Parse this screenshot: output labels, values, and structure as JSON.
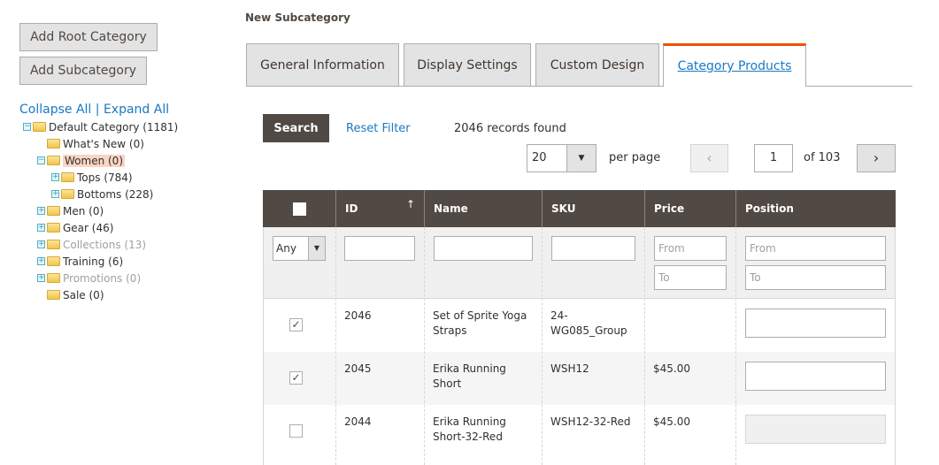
{
  "buttons": {
    "add_root": "Add Root Category",
    "add_sub": "Add Subcategory"
  },
  "tree": {
    "collapse": "Collapse All",
    "sep": "|",
    "expand": "Expand All",
    "nodes": [
      {
        "label": "Default Category (1181)",
        "level": 0,
        "toggle": "minus"
      },
      {
        "label": "What's New (0)",
        "level": 1,
        "toggle": "none"
      },
      {
        "label": "Women (0)",
        "level": 1,
        "toggle": "minus",
        "selected": true
      },
      {
        "label": "Tops (784)",
        "level": 2,
        "toggle": "plus"
      },
      {
        "label": "Bottoms (228)",
        "level": 2,
        "toggle": "plus"
      },
      {
        "label": "Men (0)",
        "level": 1,
        "toggle": "plus"
      },
      {
        "label": "Gear (46)",
        "level": 1,
        "toggle": "plus"
      },
      {
        "label": "Collections (13)",
        "level": 1,
        "toggle": "plus",
        "disabled": true
      },
      {
        "label": "Training (6)",
        "level": 1,
        "toggle": "plus"
      },
      {
        "label": "Promotions (0)",
        "level": 1,
        "toggle": "plus",
        "disabled": true
      },
      {
        "label": "Sale (0)",
        "level": 1,
        "toggle": "none"
      }
    ]
  },
  "page_title": "New Subcategory",
  "tabs": [
    "General Information",
    "Display Settings",
    "Custom Design",
    "Category Products"
  ],
  "grid": {
    "search": "Search",
    "reset": "Reset Filter",
    "records": "2046 records found",
    "per_page_value": "20",
    "per_page_label": "per page",
    "page": "1",
    "of_pages": "of 103",
    "columns": [
      "ID",
      "Name",
      "SKU",
      "Price",
      "Position"
    ],
    "filter": {
      "any": "Any",
      "from": "From",
      "to": "To"
    },
    "rows": [
      {
        "checked": true,
        "id": "2046",
        "name": "Set of Sprite Yoga Straps",
        "sku": "24-WG085_Group",
        "price": "",
        "position_enabled": true
      },
      {
        "checked": true,
        "id": "2045",
        "name": "Erika Running Short",
        "sku": "WSH12",
        "price": "$45.00",
        "position_enabled": true
      },
      {
        "checked": false,
        "id": "2044",
        "name": "Erika Running Short-32-Red",
        "sku": "WSH12-32-Red",
        "price": "$45.00",
        "position_enabled": false
      }
    ]
  },
  "colors": {
    "accent": "#eb5202",
    "header": "#514943",
    "link": "#1979c3"
  }
}
